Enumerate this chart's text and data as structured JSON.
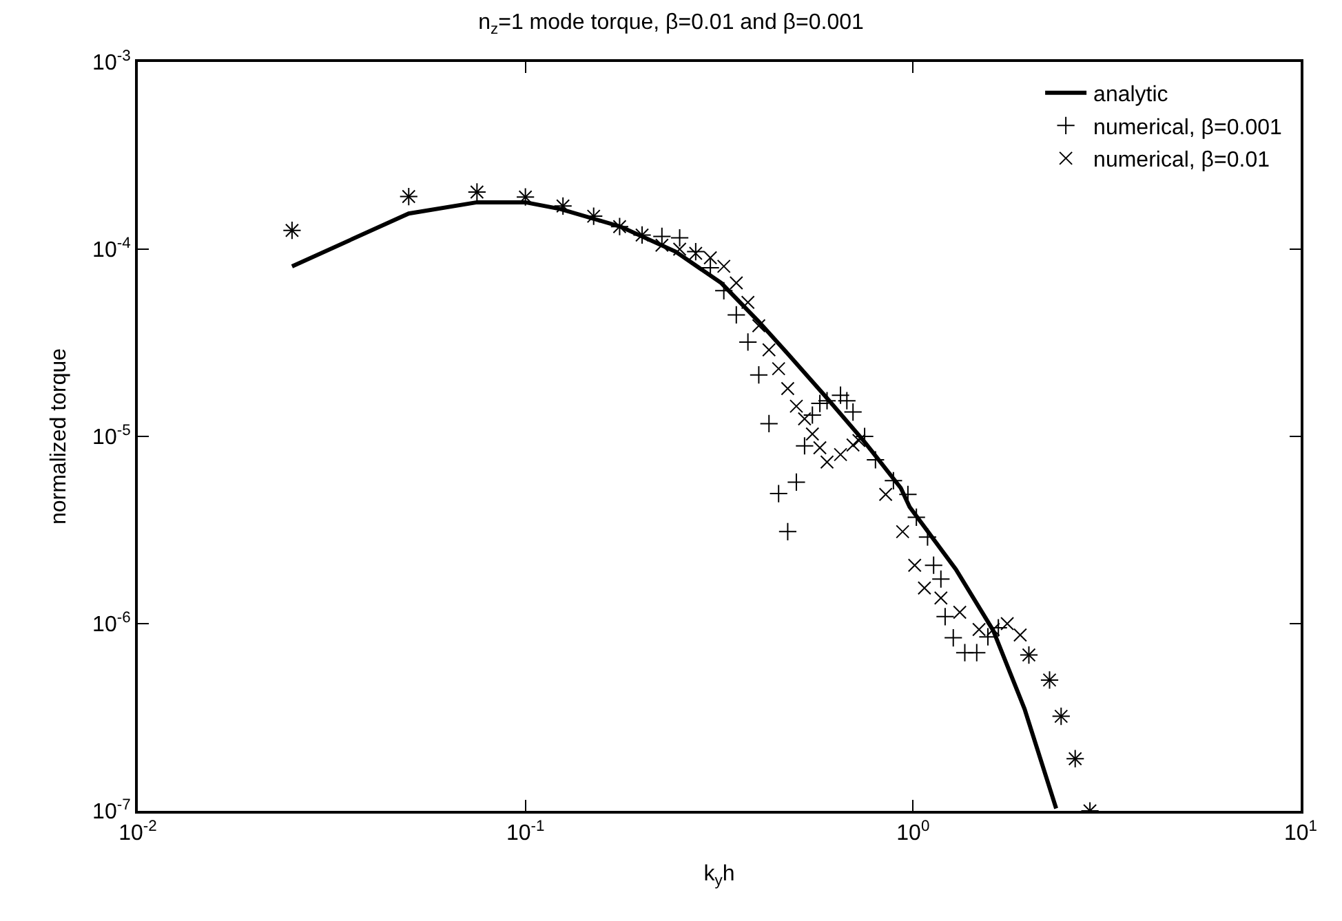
{
  "chart_data": {
    "type": "line",
    "title": "n$_{z}$=1 mode torque, β=0.01 and β=0.001",
    "xlabel": "k$_{y}$h",
    "ylabel": "normalized torque",
    "log": "xy",
    "legend": "top right",
    "xlim": [
      0.01,
      10
    ],
    "ylim": [
      1e-07,
      0.001
    ],
    "xticks": [
      {
        "value": 0.01,
        "label": "10$^{-2}$"
      },
      {
        "value": 0.1,
        "label": "10$^{-1}$"
      },
      {
        "value": 1,
        "label": "10$^{0}$"
      },
      {
        "value": 10,
        "label": "10$^{1}$"
      }
    ],
    "yticks": [
      {
        "value": 1e-07,
        "label": "10$^{-7}$"
      },
      {
        "value": 1e-06,
        "label": "10$^{-6}$"
      },
      {
        "value": 1e-05,
        "label": "10$^{-5}$"
      },
      {
        "value": 0.0001,
        "label": "10$^{-4}$"
      },
      {
        "value": 0.001,
        "label": "10$^{-3}$"
      }
    ],
    "series": [
      {
        "name": "analytic",
        "marker": "none",
        "line_style": "solid",
        "color": "#000000",
        "x": [
          0.025,
          0.05,
          0.075,
          0.1,
          0.123,
          0.176,
          0.244,
          0.32,
          0.4,
          0.48,
          0.6,
          0.745,
          0.93,
          0.98,
          1.29,
          1.61,
          1.94,
          2.34
        ],
        "values": [
          8.1e-05,
          0.000155,
          0.000178,
          0.000178,
          0.000164,
          0.000132,
          9.7e-05,
          6.6e-05,
          4.1e-05,
          2.7e-05,
          1.6e-05,
          9.5e-06,
          5.3e-06,
          4.2e-06,
          1.95e-06,
          9.2e-07,
          3.5e-07,
          1.03e-07
        ]
      },
      {
        "name": "numerical, β=0.001",
        "type": "scatter",
        "marker": "cross",
        "color": "#000000",
        "x": [
          0.025,
          0.05,
          0.075,
          0.1,
          0.125,
          0.15,
          0.175,
          0.2,
          0.225,
          0.25,
          0.275,
          0.3,
          0.325,
          0.35,
          0.375,
          0.4,
          0.425,
          0.45,
          0.475,
          0.5,
          0.525,
          0.55,
          0.575,
          0.6,
          0.65,
          0.675,
          0.7,
          0.75,
          0.8,
          0.89,
          0.97,
          1.02,
          1.09,
          1.13,
          1.18,
          1.21,
          1.27,
          1.36,
          1.46,
          1.56,
          1.66,
          1.99,
          2.25,
          2.41,
          2.62,
          2.86
        ],
        "values": [
          0.000126,
          0.000191,
          0.000202,
          0.00019,
          0.00017,
          0.00015,
          0.000132,
          0.000119,
          0.000117,
          0.000115,
          9.7e-05,
          7.96e-05,
          6e-05,
          4.46e-05,
          3.19e-05,
          2.13e-05,
          1.17e-05,
          4.95e-06,
          3.1e-06,
          5.7e-06,
          8.9e-06,
          1.3e-05,
          1.5e-05,
          1.55e-05,
          1.66e-05,
          1.55e-05,
          1.35e-05,
          1e-05,
          7.5e-06,
          5.8e-06,
          4.9e-06,
          3.7e-06,
          2.9e-06,
          2.05e-06,
          1.73e-06,
          1.09e-06,
          8.4e-07,
          7e-07,
          7e-07,
          8.5e-07,
          9.5e-07,
          6.8e-07,
          5e-07,
          3.2e-07,
          1.9e-07,
          1e-07
        ]
      },
      {
        "name": "numerical, β=0.01",
        "type": "scatter",
        "marker": "x",
        "color": "#000000",
        "x": [
          0.025,
          0.05,
          0.075,
          0.1,
          0.125,
          0.15,
          0.175,
          0.2,
          0.225,
          0.25,
          0.275,
          0.3,
          0.325,
          0.35,
          0.375,
          0.4,
          0.425,
          0.45,
          0.475,
          0.5,
          0.525,
          0.55,
          0.575,
          0.6,
          0.65,
          0.7,
          0.725,
          0.85,
          0.94,
          1.01,
          1.07,
          1.18,
          1.32,
          1.48,
          1.61,
          1.75,
          1.89,
          1.99,
          2.25,
          2.41,
          2.62,
          2.86
        ],
        "values": [
          0.000126,
          0.000191,
          0.000202,
          0.00019,
          0.00017,
          0.00015,
          0.000132,
          0.000119,
          0.000105,
          0.0001,
          9.5e-05,
          9e-05,
          8.1e-05,
          6.6e-05,
          5.2e-05,
          3.9e-05,
          2.9e-05,
          2.3e-05,
          1.8e-05,
          1.45e-05,
          1.24e-05,
          1.03e-05,
          8.7e-06,
          7.3e-06,
          8e-06,
          9e-06,
          9.5e-06,
          4.9e-06,
          3.1e-06,
          2.05e-06,
          1.55e-06,
          1.37e-06,
          1.15e-06,
          9.3e-07,
          9.3e-07,
          1e-06,
          8.7e-07,
          6.8e-07,
          5e-07,
          3.2e-07,
          1.9e-07,
          1e-07
        ]
      }
    ]
  }
}
